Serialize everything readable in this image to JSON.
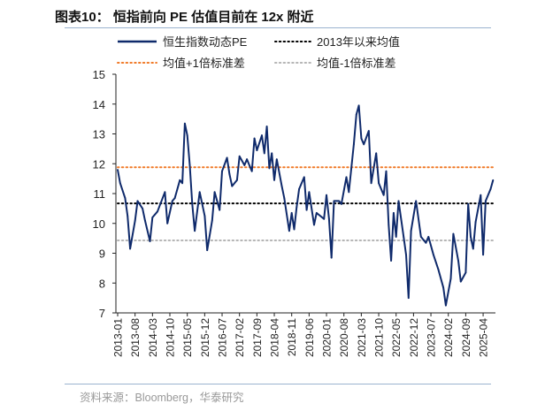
{
  "title": "图表10：  恒指前向 PE 估值目前在 12x 附近",
  "source": "资料来源：Bloomberg，华泰研究",
  "colors": {
    "series": "#0f2a6b",
    "mean": "#000000",
    "plus_sd": "#f07a28",
    "minus_sd": "#b5b5b5",
    "rule": "#9bb3cf"
  },
  "chart_data": {
    "type": "line",
    "title": "",
    "xlabel": "",
    "ylabel": "",
    "ylim": [
      7,
      15
    ],
    "yticks": [
      7,
      8,
      9,
      10,
      11,
      12,
      13,
      14,
      15
    ],
    "xlim": [
      "2013-01",
      "2025-09"
    ],
    "xticks": [
      "2013-01",
      "2013-08",
      "2014-03",
      "2014-10",
      "2015-05",
      "2015-12",
      "2016-07",
      "2017-02",
      "2017-09",
      "2018-04",
      "2018-11",
      "2019-06",
      "2020-01",
      "2020-08",
      "2021-03",
      "2021-10",
      "2022-05",
      "2022-12",
      "2023-07",
      "2024-02",
      "2024-09",
      "2025-04"
    ],
    "grid": false,
    "legend_placement": "top",
    "series": [
      {
        "name": "恒生指数动态PE",
        "style": "solid",
        "x": [
          "2013-01",
          "2013-02",
          "2013-04",
          "2013-05",
          "2013-06",
          "2013-08",
          "2013-09",
          "2013-11",
          "2013-12",
          "2014-02",
          "2014-03",
          "2014-05",
          "2014-08",
          "2014-09",
          "2014-11",
          "2014-12",
          "2015-02",
          "2015-03",
          "2015-04",
          "2015-05",
          "2015-06",
          "2015-07",
          "2015-08",
          "2015-10",
          "2015-12",
          "2016-01",
          "2016-03",
          "2016-04",
          "2016-06",
          "2016-07",
          "2016-09",
          "2016-10",
          "2016-11",
          "2017-01",
          "2017-02",
          "2017-04",
          "2017-05",
          "2017-07",
          "2017-08",
          "2017-09",
          "2017-11",
          "2017-12",
          "2018-01",
          "2018-02",
          "2018-03",
          "2018-04",
          "2018-05",
          "2018-07",
          "2018-08",
          "2018-10",
          "2018-11",
          "2018-12",
          "2019-01",
          "2019-02",
          "2019-04",
          "2019-05",
          "2019-06",
          "2019-08",
          "2019-09",
          "2019-12",
          "2020-01",
          "2020-02",
          "2020-03",
          "2020-04",
          "2020-06",
          "2020-07",
          "2020-09",
          "2020-10",
          "2020-11",
          "2020-12",
          "2021-01",
          "2021-02",
          "2021-03",
          "2021-04",
          "2021-06",
          "2021-07",
          "2021-09",
          "2021-10",
          "2021-12",
          "2022-01",
          "2022-02",
          "2022-03",
          "2022-04",
          "2022-05",
          "2022-06",
          "2022-08",
          "2022-09",
          "2022-10",
          "2022-11",
          "2023-01",
          "2023-03",
          "2023-05",
          "2023-06",
          "2023-08",
          "2023-10",
          "2023-12",
          "2024-01",
          "2024-03",
          "2024-04",
          "2024-06",
          "2024-07",
          "2024-09",
          "2024-10",
          "2024-11",
          "2024-12",
          "2025-01",
          "2025-03",
          "2025-04",
          "2025-05",
          "2025-07",
          "2025-08"
        ],
        "values": [
          11.8,
          11.35,
          10.85,
          10.25,
          9.15,
          10.1,
          10.75,
          10.5,
          10.1,
          9.4,
          10.2,
          10.4,
          11.05,
          10.0,
          10.75,
          10.85,
          11.45,
          11.35,
          13.35,
          12.95,
          11.95,
          10.65,
          9.75,
          11.05,
          10.25,
          9.1,
          10.1,
          11.05,
          10.45,
          11.75,
          12.2,
          11.65,
          11.25,
          11.45,
          12.25,
          11.95,
          12.15,
          11.75,
          12.85,
          12.45,
          12.95,
          12.35,
          13.25,
          11.85,
          12.35,
          11.45,
          12.15,
          11.25,
          10.85,
          9.75,
          10.35,
          9.8,
          10.55,
          11.15,
          11.55,
          10.45,
          11.05,
          9.95,
          10.35,
          10.15,
          10.95,
          10.15,
          8.85,
          10.75,
          10.75,
          10.65,
          11.55,
          11.05,
          11.85,
          12.65,
          13.65,
          13.95,
          12.85,
          12.65,
          13.1,
          11.35,
          12.35,
          11.35,
          10.95,
          11.75,
          9.95,
          8.75,
          10.35,
          9.55,
          10.75,
          9.55,
          8.95,
          7.5,
          9.75,
          10.75,
          9.55,
          9.35,
          9.55,
          8.95,
          8.45,
          7.85,
          7.25,
          8.15,
          9.65,
          8.75,
          8.05,
          8.35,
          10.65,
          9.55,
          9.15,
          10.05,
          10.95,
          8.95,
          10.75,
          11.15,
          11.45
        ]
      },
      {
        "name": "2013年以来均值",
        "style": "dotted",
        "value": 10.67
      },
      {
        "name": "均值+1倍标准差",
        "style": "dotted",
        "value": 11.88
      },
      {
        "name": "均值-1倍标准差",
        "style": "dotted",
        "value": 9.43
      }
    ]
  }
}
